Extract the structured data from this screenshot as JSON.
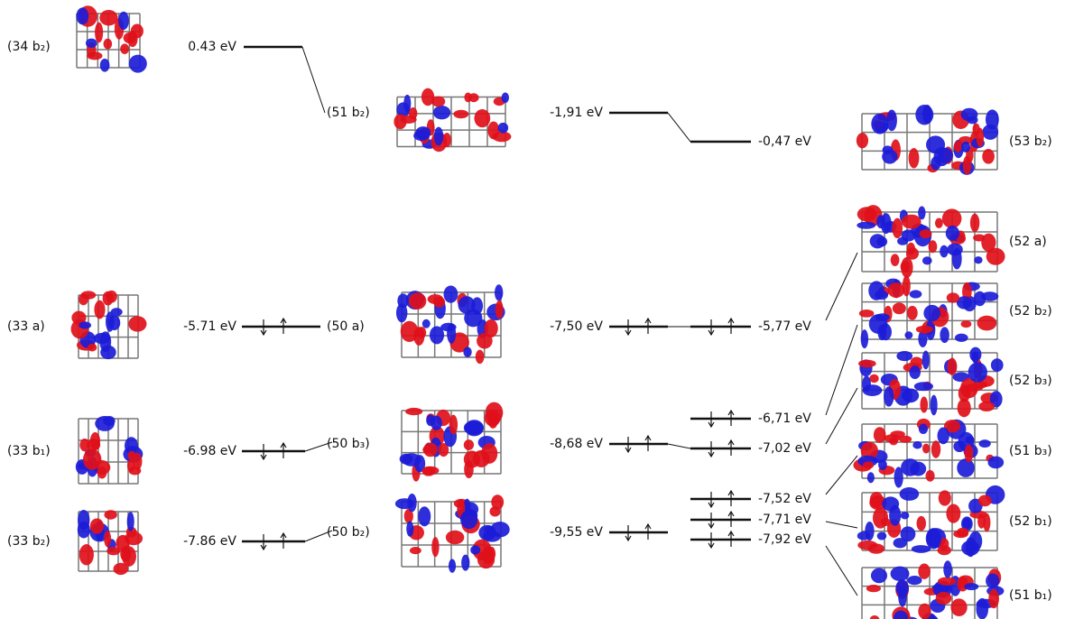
{
  "left": [
    {
      "label": "(34 b₂)",
      "energy": "0.43 eV"
    },
    {
      "label": "(33 a)",
      "energy": "-5.71 eV"
    },
    {
      "label": "(33 b₁)",
      "energy": "-6.98 eV"
    },
    {
      "label": "(33 b₂)",
      "energy": "-7.86 eV"
    }
  ],
  "middle": [
    {
      "label": "(51 b₂)",
      "energy": "-1,91 eV"
    },
    {
      "label": "(50 a)",
      "energy": "-7,50 eV"
    },
    {
      "label": "(50 b₃)",
      "energy": "-8,68 eV"
    },
    {
      "label": "(50 b₂)",
      "energy": "-9,55 eV"
    }
  ],
  "right_levels": [
    "-0,47 eV",
    "-5,77 eV",
    "-6,71 eV",
    "-7,02 eV",
    "-7,52 eV",
    "-7,71 eV",
    "-7,92 eV"
  ],
  "right_orbitals": [
    "(53 b₂)",
    "(52 a)",
    "(52 b₂)",
    "(52 b₃)",
    "(51 b₃)",
    "(52 b₁)",
    "(51 b₁)"
  ]
}
